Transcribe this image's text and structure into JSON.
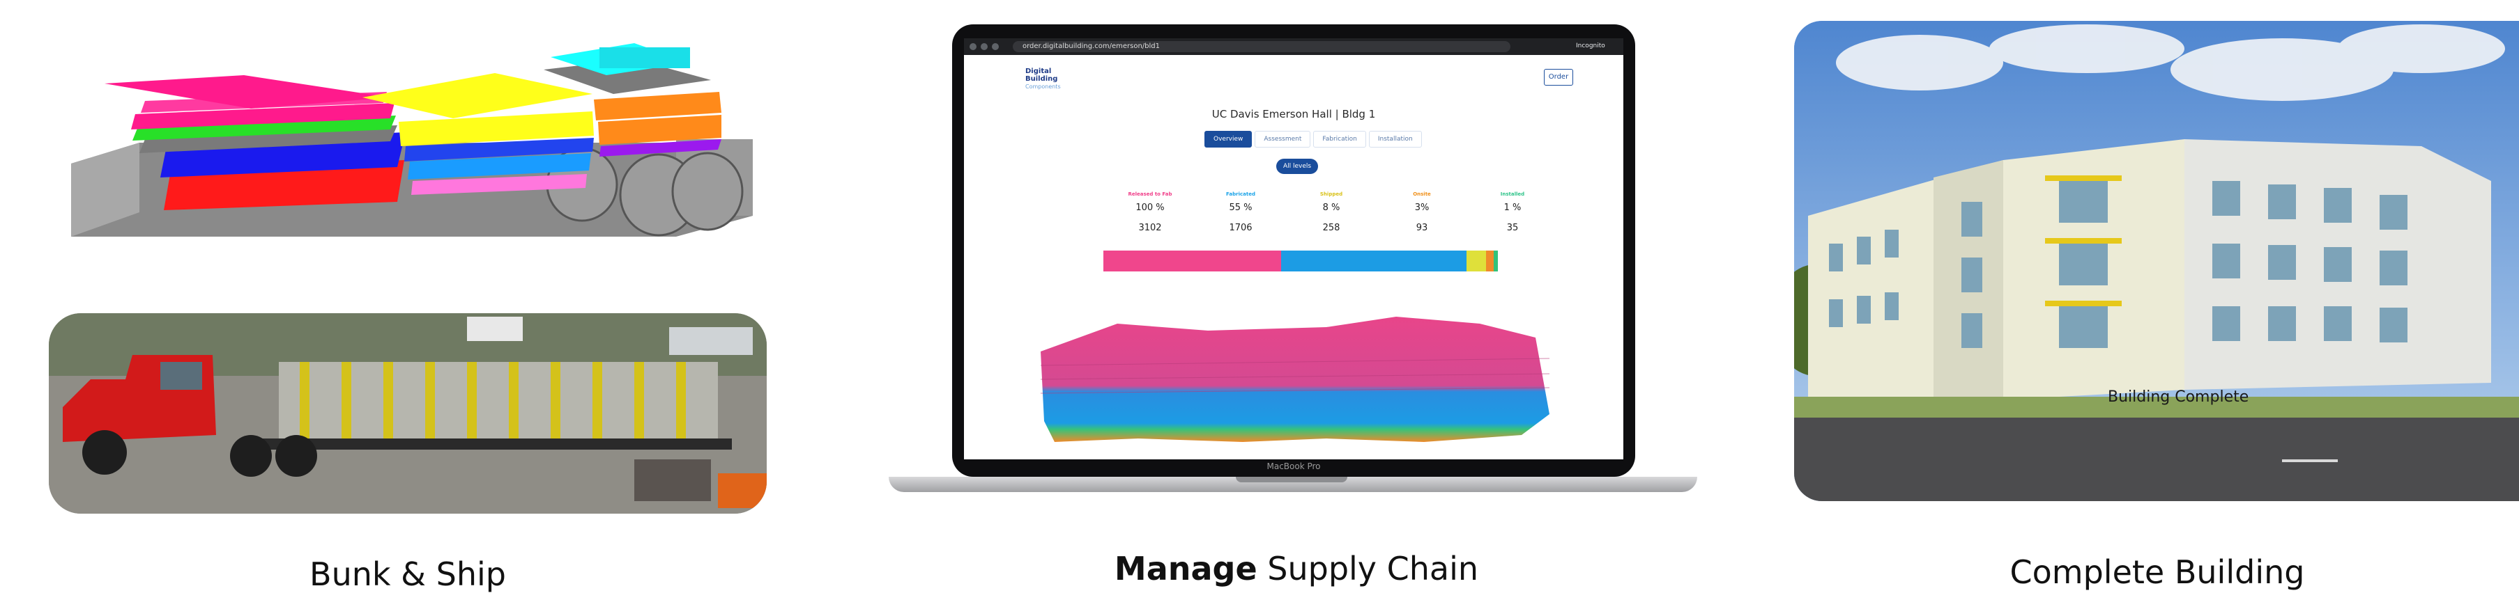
{
  "panels": {
    "left": {
      "caption": "Bunk & Ship"
    },
    "center": {
      "caption_bold": "Manage",
      "caption_rest": " Supply Chain"
    },
    "right": {
      "caption": "Complete Building",
      "overlay_text": "Building Complete"
    }
  },
  "laptop": {
    "model_label": "MacBook Pro",
    "browser": {
      "url": "order.digitalbuilding.com/emerson/bld1",
      "profile": "Incognito"
    },
    "app": {
      "logo_line1": "Digital",
      "logo_line2": "Building",
      "logo_line3": "Components",
      "order_button": "Order",
      "title": "UC Davis Emerson Hall | Bldg 1",
      "tabs": [
        {
          "label": "Overview",
          "active": true
        },
        {
          "label": "Assessment",
          "active": false
        },
        {
          "label": "Fabrication",
          "active": false
        },
        {
          "label": "Installation",
          "active": false
        }
      ],
      "levels_button": "All levels",
      "stats": [
        {
          "label": "Released to Fab",
          "percent": "100 %",
          "count": "3102",
          "color": "#f0408a"
        },
        {
          "label": "Fabricated",
          "percent": "55 %",
          "count": "1706",
          "color": "#1aa3e8"
        },
        {
          "label": "Shipped",
          "percent": "8 %",
          "count": "258",
          "color": "#e8d21a"
        },
        {
          "label": "Onsite",
          "percent": "3%",
          "count": "93",
          "color": "#f0901a"
        },
        {
          "label": "Installed",
          "percent": "1 %",
          "count": "35",
          "color": "#2fc48a"
        }
      ],
      "progress": [
        {
          "name": "released",
          "fraction": 0.45,
          "color": "#f0468c"
        },
        {
          "name": "fabricated",
          "fraction": 0.47,
          "color": "#1c9ce4"
        },
        {
          "name": "shipped",
          "fraction": 0.05,
          "color": "#dfe03a"
        },
        {
          "name": "onsite",
          "fraction": 0.02,
          "color": "#f08a2a"
        },
        {
          "name": "installed",
          "fraction": 0.01,
          "color": "#32c27a"
        }
      ]
    }
  }
}
